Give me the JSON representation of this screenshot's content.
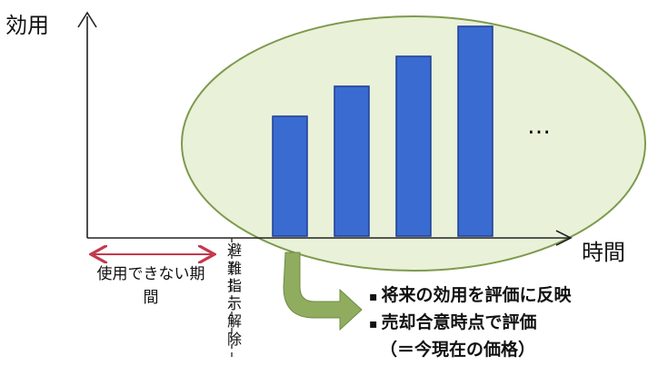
{
  "y_axis_label": "効用",
  "x_axis_label": "時間",
  "ellipsis": "…",
  "unusable_period_label": "使用できない期間",
  "evacuation_label": "避難指示解除",
  "bullet": "▪",
  "points": [
    "将来の効用を評価に反映",
    "売却合意時点で評価",
    "（＝今現在の価格）"
  ],
  "colors": {
    "bar": "#3a6bd0",
    "bar_border": "#1e3e94",
    "ellipse_fill": "#e9f1d9",
    "ellipse_stroke": "#7e9a4c",
    "arrow": "#8fac5f",
    "period_arrow": "#c43a4d"
  },
  "chart_data": {
    "type": "bar",
    "values": [
      4,
      5,
      6,
      7
    ]
  }
}
